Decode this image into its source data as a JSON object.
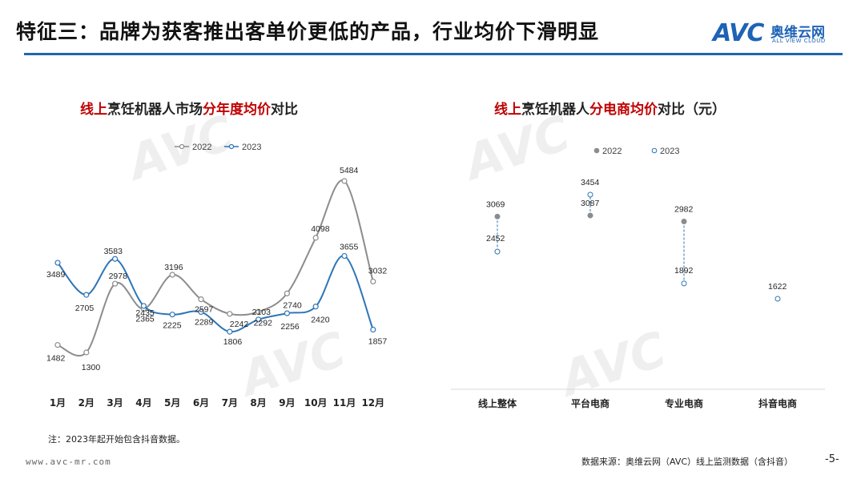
{
  "header": {
    "title": "特征三：品牌为获客推出客单价更低的产品，行业均价下滑明显",
    "logo_mark": "AVC",
    "logo_cn": "奥维云网",
    "logo_en": "ALL VIEW CLOUD",
    "accent_color": "#2166b0"
  },
  "chart_data": [
    {
      "type": "line",
      "title_parts": [
        {
          "text": "线上",
          "red": true
        },
        {
          "text": "烹饪机器人市场",
          "red": false
        },
        {
          "text": "分年度均价",
          "red": true
        },
        {
          "text": "对比",
          "red": false
        }
      ],
      "categories": [
        "1月",
        "2月",
        "3月",
        "4月",
        "5月",
        "6月",
        "7月",
        "8月",
        "9月",
        "10月",
        "11月",
        "12月"
      ],
      "series": [
        {
          "name": "2022",
          "color": "#8c8c8c",
          "values": [
            1482,
            1300,
            2978,
            2365,
            3196,
            2597,
            2242,
            2292,
            2740,
            4098,
            5484,
            3032
          ]
        },
        {
          "name": "2023",
          "color": "#2e75b6",
          "values": [
            3489,
            2705,
            3583,
            2435,
            2225,
            2289,
            1806,
            2103,
            2256,
            2420,
            3655,
            1857
          ]
        }
      ],
      "grid": false,
      "legend": "top-center"
    },
    {
      "type": "scatter",
      "title_parts": [
        {
          "text": "线上",
          "red": true
        },
        {
          "text": "烹饪机器人",
          "red": false
        },
        {
          "text": "分电商均价",
          "red": true
        },
        {
          "text": "对比（元）",
          "red": false
        }
      ],
      "categories": [
        "线上整体",
        "平台电商",
        "专业电商",
        "抖音电商"
      ],
      "series": [
        {
          "name": "2022",
          "color": "#8c8c8c",
          "values": [
            3069,
            3087,
            2982,
            null
          ]
        },
        {
          "name": "2023",
          "color": "#2e75b6",
          "values": [
            2452,
            3454,
            1892,
            1622
          ]
        }
      ],
      "grid": false,
      "legend": "top-center"
    }
  ],
  "footnote": "注：2023年起开始包含抖音数据。",
  "website": "www.avc-mr.com",
  "source": "数据来源：奥维云网（AVC）线上监测数据（含抖音）",
  "page_number": "-5-"
}
